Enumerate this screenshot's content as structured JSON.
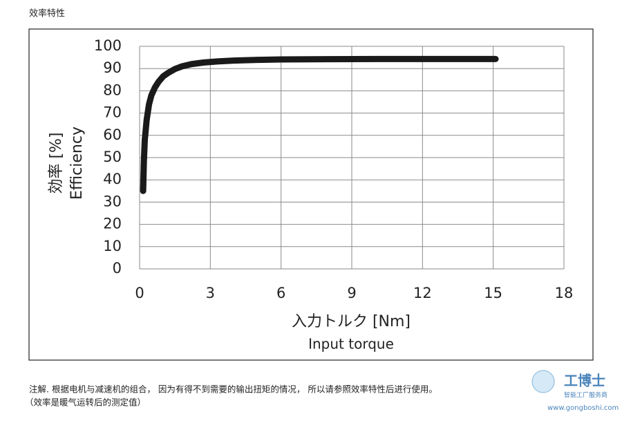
{
  "header": {
    "title": "效率特性"
  },
  "chart_data": {
    "type": "line",
    "y_label": "効率 [%]",
    "y_label_en": "Efficiency",
    "x_label": "入力トルク [Nm]",
    "x_label_en": "Input torque",
    "x": [
      0.15,
      0.18,
      0.22,
      0.3,
      0.4,
      0.5,
      0.65,
      0.8,
      1.0,
      1.2,
      1.5,
      1.8,
      2.2,
      2.7,
      3.3,
      4,
      5,
      6,
      8,
      10,
      12,
      14,
      15.1
    ],
    "values": [
      35,
      48,
      58,
      67,
      74,
      78,
      81.5,
      84,
      86.5,
      88,
      89.8,
      91,
      92,
      92.7,
      93.2,
      93.6,
      93.9,
      94.1,
      94.2,
      94.3,
      94.3,
      94.3,
      94.3
    ],
    "color": "#1a1a1a",
    "xlim": [
      0,
      18
    ],
    "xticks": [
      0,
      3,
      6,
      9,
      12,
      15,
      18
    ],
    "ylim": [
      0,
      100
    ],
    "yticks": [
      0,
      10,
      20,
      30,
      40,
      50,
      60,
      70,
      80,
      90,
      100
    ],
    "grid": true
  },
  "footer": {
    "note": "注解. 根据电机与减速机的组合， 因为有得不到需要的输出扭矩的情况， 所以请参照效率特性后进行使用。",
    "remark": "（效率是暖气运转后的测定值）"
  },
  "watermark": {
    "brand": "工博士",
    "slogan": "智能工厂服务商",
    "url": "www.gongboshi.com"
  }
}
